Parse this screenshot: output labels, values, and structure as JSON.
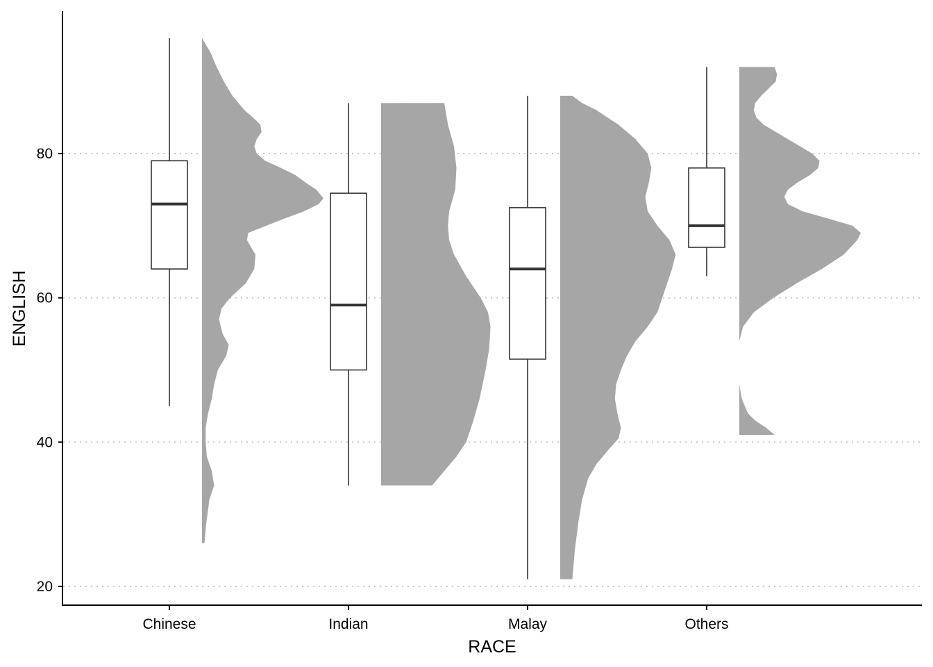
{
  "chart_data": {
    "type": "raincloud",
    "xlabel": "RACE",
    "ylabel": "ENGLISH",
    "ylim": [
      17.5,
      99
    ],
    "y_ticks": [
      20,
      40,
      60,
      80
    ],
    "grid": "horizontal dotted at y ticks",
    "colors": {
      "density_fill": "#a6a6a6",
      "grid": "#c8c8c8",
      "axis": "#000000",
      "box_stroke": "#333333"
    },
    "categories": [
      "Chinese",
      "Indian",
      "Malay",
      "Others"
    ],
    "groups": [
      {
        "name": "Chinese",
        "box": {
          "min": 45,
          "q1": 64,
          "median": 73,
          "q3": 79,
          "max": 96
        },
        "density_range": [
          26,
          96
        ],
        "density": [
          [
            26,
            0.02
          ],
          [
            28,
            0.03
          ],
          [
            32,
            0.06
          ],
          [
            34,
            0.1
          ],
          [
            36,
            0.08
          ],
          [
            38,
            0.04
          ],
          [
            40,
            0.03
          ],
          [
            42,
            0.03
          ],
          [
            44,
            0.05
          ],
          [
            46,
            0.08
          ],
          [
            48,
            0.1
          ],
          [
            50,
            0.13
          ],
          [
            52,
            0.2
          ],
          [
            53.5,
            0.22
          ],
          [
            55,
            0.17
          ],
          [
            57,
            0.14
          ],
          [
            58.5,
            0.16
          ],
          [
            60,
            0.23
          ],
          [
            62,
            0.36
          ],
          [
            64,
            0.43
          ],
          [
            66,
            0.44
          ],
          [
            68,
            0.37
          ],
          [
            69,
            0.38
          ],
          [
            70,
            0.53
          ],
          [
            71,
            0.68
          ],
          [
            72,
            0.84
          ],
          [
            73,
            0.96
          ],
          [
            73.8,
            1.0
          ],
          [
            75,
            0.94
          ],
          [
            76,
            0.85
          ],
          [
            77,
            0.77
          ],
          [
            78,
            0.65
          ],
          [
            79,
            0.52
          ],
          [
            80,
            0.45
          ],
          [
            81,
            0.43
          ],
          [
            82,
            0.45
          ],
          [
            83,
            0.49
          ],
          [
            84,
            0.48
          ],
          [
            85,
            0.42
          ],
          [
            86,
            0.35
          ],
          [
            88,
            0.25
          ],
          [
            90,
            0.18
          ],
          [
            92,
            0.12
          ],
          [
            94,
            0.07
          ],
          [
            96,
            0.0
          ]
        ]
      },
      {
        "name": "Indian",
        "box": {
          "min": 34,
          "q1": 50,
          "median": 59,
          "q3": 74.5,
          "max": 87
        },
        "density_range": [
          34,
          87
        ],
        "density": [
          [
            34,
            0.42
          ],
          [
            36,
            0.52
          ],
          [
            38,
            0.62
          ],
          [
            40,
            0.7
          ],
          [
            43,
            0.76
          ],
          [
            46,
            0.81
          ],
          [
            50,
            0.86
          ],
          [
            53,
            0.89
          ],
          [
            56,
            0.9
          ],
          [
            58,
            0.88
          ],
          [
            60,
            0.82
          ],
          [
            63,
            0.7
          ],
          [
            66,
            0.6
          ],
          [
            68,
            0.56
          ],
          [
            70,
            0.55
          ],
          [
            72,
            0.56
          ],
          [
            75,
            0.61
          ],
          [
            78,
            0.62
          ],
          [
            81,
            0.6
          ],
          [
            84,
            0.55
          ],
          [
            87,
            0.52
          ]
        ]
      },
      {
        "name": "Malay",
        "box": {
          "min": 21,
          "q1": 51.5,
          "median": 64,
          "q3": 72.5,
          "max": 88
        },
        "density_range": [
          21,
          88
        ],
        "density": [
          [
            21,
            0.1
          ],
          [
            25,
            0.12
          ],
          [
            29,
            0.15
          ],
          [
            32,
            0.18
          ],
          [
            35,
            0.23
          ],
          [
            37,
            0.3
          ],
          [
            39,
            0.4
          ],
          [
            40.5,
            0.48
          ],
          [
            42,
            0.5
          ],
          [
            44,
            0.47
          ],
          [
            46,
            0.45
          ],
          [
            48,
            0.46
          ],
          [
            50,
            0.5
          ],
          [
            52,
            0.55
          ],
          [
            54,
            0.62
          ],
          [
            56,
            0.72
          ],
          [
            58,
            0.8
          ],
          [
            60,
            0.84
          ],
          [
            62,
            0.88
          ],
          [
            64,
            0.92
          ],
          [
            66,
            0.95
          ],
          [
            68,
            0.9
          ],
          [
            70,
            0.8
          ],
          [
            72,
            0.72
          ],
          [
            74,
            0.7
          ],
          [
            76,
            0.73
          ],
          [
            78,
            0.75
          ],
          [
            80,
            0.72
          ],
          [
            82,
            0.62
          ],
          [
            84,
            0.48
          ],
          [
            86,
            0.3
          ],
          [
            87,
            0.18
          ],
          [
            88,
            0.1
          ]
        ]
      },
      {
        "name": "Others",
        "box": {
          "min": 63,
          "q1": 67,
          "median": 70,
          "q3": 78,
          "max": 92
        },
        "density_range": [
          41,
          92
        ],
        "density": [
          [
            41,
            0.29
          ],
          [
            42,
            0.22
          ],
          [
            43,
            0.13
          ],
          [
            44,
            0.07
          ],
          [
            46,
            0.02
          ],
          [
            48,
            0.0
          ],
          [
            50,
            0.0
          ],
          [
            54,
            0.0
          ],
          [
            56,
            0.03
          ],
          [
            58,
            0.12
          ],
          [
            60,
            0.28
          ],
          [
            62,
            0.47
          ],
          [
            64,
            0.68
          ],
          [
            66,
            0.86
          ],
          [
            68,
            0.97
          ],
          [
            69,
            1.0
          ],
          [
            70,
            0.93
          ],
          [
            71,
            0.73
          ],
          [
            72,
            0.52
          ],
          [
            73,
            0.4
          ],
          [
            74,
            0.37
          ],
          [
            75,
            0.4
          ],
          [
            76,
            0.48
          ],
          [
            77,
            0.58
          ],
          [
            78,
            0.65
          ],
          [
            79,
            0.66
          ],
          [
            80,
            0.6
          ],
          [
            81,
            0.5
          ],
          [
            82,
            0.4
          ],
          [
            83,
            0.3
          ],
          [
            84,
            0.2
          ],
          [
            85,
            0.14
          ],
          [
            86,
            0.12
          ],
          [
            87,
            0.13
          ],
          [
            88,
            0.18
          ],
          [
            89,
            0.24
          ],
          [
            90,
            0.3
          ],
          [
            91,
            0.31
          ],
          [
            92,
            0.29
          ]
        ]
      }
    ]
  }
}
